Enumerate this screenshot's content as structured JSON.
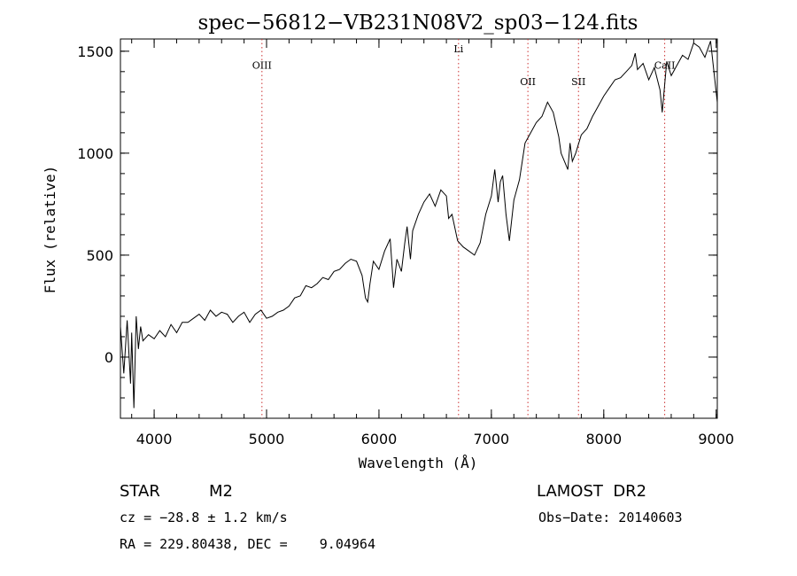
{
  "chart_data": {
    "type": "line",
    "title": "spec−56812−VB231N08V2_sp03−124.fits",
    "xlabel": "Wavelength (Å)",
    "ylabel": "Flux (relative)",
    "xlim": [
      3700,
      9010
    ],
    "ylim": [
      -300,
      1560
    ],
    "x_ticks": [
      4000,
      5000,
      6000,
      7000,
      8000,
      9000
    ],
    "y_ticks": [
      0,
      500,
      1000,
      1500
    ],
    "x_minor_step": 200,
    "y_minor_step": 100,
    "line_color": "#000000",
    "marker_color": "#cc3333",
    "grid": false,
    "legend": "none",
    "lines": [
      {
        "name": "OIII",
        "wavelength": 4959,
        "label_flux": 1415
      },
      {
        "name": "Li",
        "wavelength": 6708,
        "label_flux": 1495
      },
      {
        "name": "OII",
        "wavelength": 7325,
        "label_flux": 1335
      },
      {
        "name": "SII",
        "wavelength": 7775,
        "label_flux": 1335
      },
      {
        "name": "CaII",
        "wavelength": 8542,
        "label_flux": 1415
      }
    ],
    "spectrum": {
      "x": [
        3700,
        3730,
        3760,
        3790,
        3800,
        3820,
        3840,
        3860,
        3880,
        3900,
        3950,
        4000,
        4050,
        4100,
        4150,
        4200,
        4250,
        4300,
        4350,
        4400,
        4450,
        4500,
        4550,
        4600,
        4650,
        4700,
        4750,
        4800,
        4850,
        4900,
        4950,
        5000,
        5050,
        5100,
        5150,
        5200,
        5250,
        5300,
        5350,
        5400,
        5450,
        5500,
        5550,
        5600,
        5650,
        5700,
        5750,
        5800,
        5850,
        5880,
        5900,
        5920,
        5950,
        6000,
        6050,
        6100,
        6130,
        6160,
        6200,
        6230,
        6250,
        6280,
        6300,
        6350,
        6400,
        6450,
        6500,
        6550,
        6600,
        6620,
        6650,
        6700,
        6750,
        6800,
        6850,
        6900,
        6950,
        7000,
        7030,
        7060,
        7080,
        7100,
        7130,
        7160,
        7200,
        7250,
        7300,
        7350,
        7400,
        7450,
        7500,
        7550,
        7600,
        7620,
        7650,
        7680,
        7700,
        7720,
        7750,
        7800,
        7850,
        7900,
        7950,
        8000,
        8050,
        8100,
        8150,
        8200,
        8250,
        8280,
        8300,
        8350,
        8400,
        8450,
        8500,
        8520,
        8560,
        8600,
        8650,
        8700,
        8750,
        8800,
        8850,
        8900,
        8950,
        9000,
        9010
      ],
      "y": [
        150,
        -80,
        180,
        -130,
        120,
        -250,
        200,
        40,
        150,
        80,
        110,
        90,
        130,
        100,
        160,
        120,
        170,
        170,
        190,
        210,
        180,
        230,
        200,
        220,
        210,
        170,
        200,
        220,
        170,
        210,
        230,
        190,
        200,
        220,
        230,
        250,
        290,
        300,
        350,
        340,
        360,
        390,
        380,
        420,
        430,
        460,
        480,
        470,
        400,
        290,
        270,
        360,
        470,
        430,
        520,
        580,
        340,
        480,
        420,
        560,
        640,
        480,
        620,
        700,
        760,
        800,
        740,
        820,
        790,
        680,
        700,
        570,
        540,
        520,
        500,
        560,
        700,
        790,
        920,
        760,
        860,
        890,
        700,
        570,
        770,
        870,
        1050,
        1100,
        1150,
        1180,
        1250,
        1200,
        1080,
        1000,
        960,
        920,
        1050,
        960,
        1000,
        1090,
        1120,
        1180,
        1230,
        1280,
        1320,
        1360,
        1370,
        1400,
        1430,
        1490,
        1410,
        1440,
        1360,
        1420,
        1310,
        1200,
        1450,
        1380,
        1430,
        1480,
        1460,
        1540,
        1520,
        1470,
        1550,
        1300,
        1250
      ]
    }
  },
  "info": {
    "star": "STAR",
    "subclass": "M2",
    "survey": "LAMOST  DR2",
    "cz": "cz = −28.8 ± 1.2 km/s",
    "obs_date": "Obs−Date: 20140603",
    "radec": "RA = 229.80438, DEC =    9.04964"
  }
}
